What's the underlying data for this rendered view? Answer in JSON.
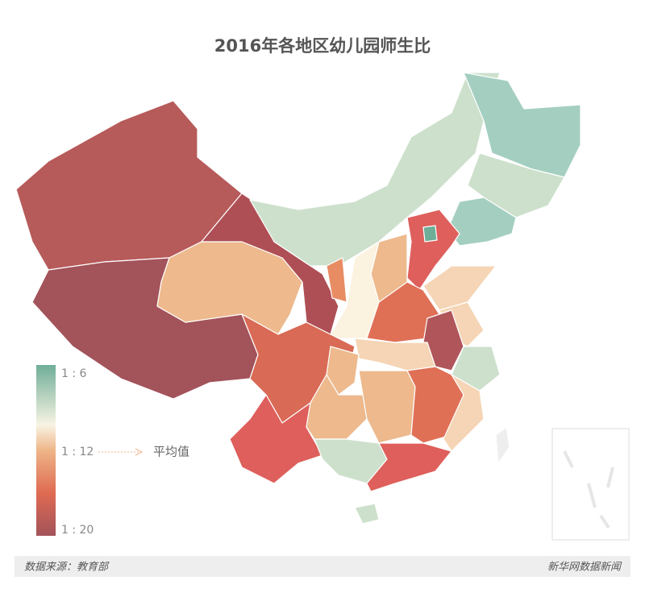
{
  "title": "2016年各地区幼儿园师生比",
  "legend": {
    "labels": [
      "1 : 6",
      "1 : 12",
      "1 : 20"
    ],
    "average": "平均值"
  },
  "footer": {
    "source": "数据来源：教育部",
    "credit": "新华网数据新闻"
  }
}
